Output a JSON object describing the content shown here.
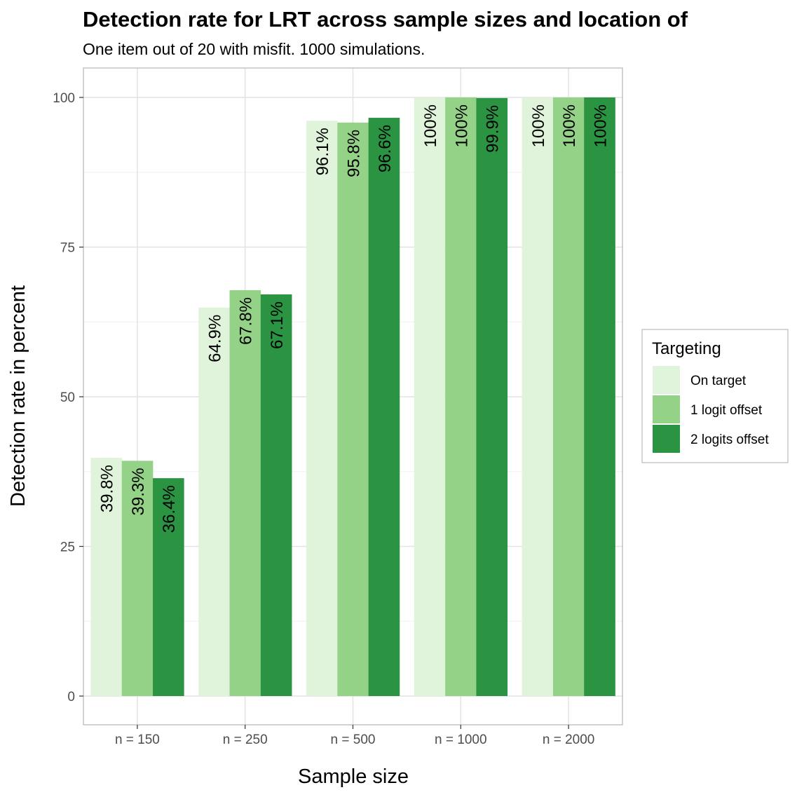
{
  "chart_data": {
    "type": "bar",
    "title": "Detection rate for LRT across sample sizes and location of",
    "subtitle": "One item out of 20 with misfit. 1000 simulations.",
    "xlabel": "Sample size",
    "ylabel": "Detection rate in percent",
    "ylim": [
      0,
      105
    ],
    "yticks": [
      0,
      25,
      50,
      75,
      100
    ],
    "grid": true,
    "legend_position": "right",
    "categories": [
      "n = 150",
      "n = 250",
      "n = 500",
      "n = 1000",
      "n = 2000"
    ],
    "series": [
      {
        "name": "On target",
        "color": "#e0f3db",
        "values": [
          39.8,
          64.9,
          96.1,
          100,
          100
        ],
        "labels": [
          "39.8%",
          "64.9%",
          "96.1%",
          "100%",
          "100%"
        ]
      },
      {
        "name": "1 logit offset",
        "color": "#93d287",
        "values": [
          39.3,
          67.8,
          95.8,
          100,
          100
        ],
        "labels": [
          "39.3%",
          "67.8%",
          "95.8%",
          "100%",
          "100%"
        ]
      },
      {
        "name": "2 logits offset",
        "color": "#2b9443",
        "values": [
          36.4,
          67.1,
          96.6,
          99.9,
          100
        ],
        "labels": [
          "36.4%",
          "67.1%",
          "96.6%",
          "99.9%",
          "100%"
        ]
      }
    ],
    "legend": {
      "title": "Targeting"
    }
  }
}
